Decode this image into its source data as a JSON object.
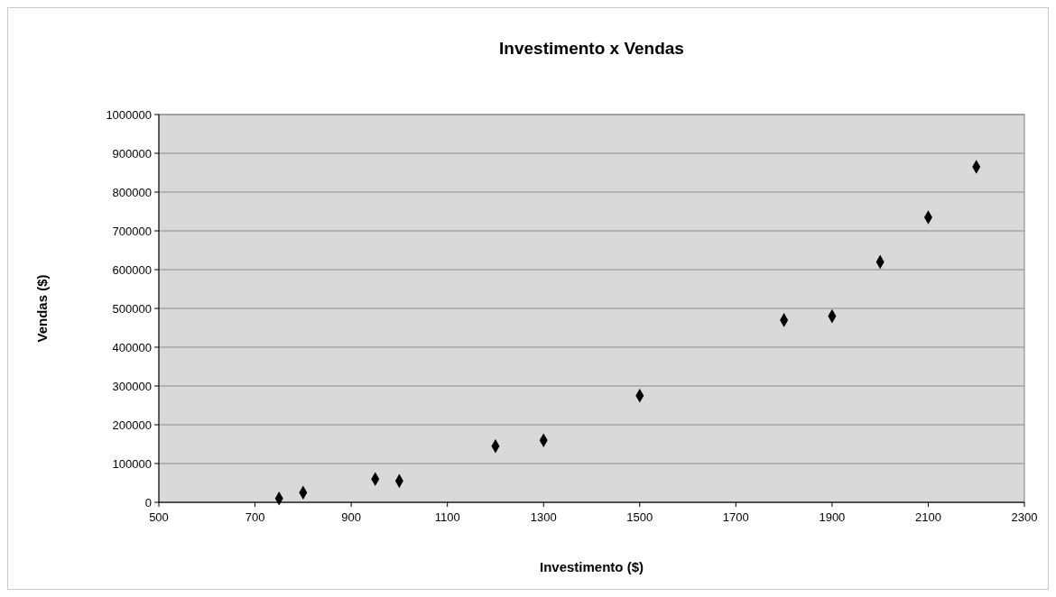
{
  "chart_data": {
    "type": "scatter",
    "title": "Investimento x Vendas",
    "xlabel": "Investimento ($)",
    "ylabel": "Vendas ($)",
    "x": [
      750,
      800,
      950,
      1000,
      1200,
      1300,
      1500,
      1800,
      1900,
      2000,
      2100,
      2200
    ],
    "values": [
      10000,
      25000,
      60000,
      55000,
      145000,
      160000,
      275000,
      470000,
      480000,
      620000,
      735000,
      865000
    ],
    "color": "#000000",
    "marker": "diamond",
    "grid": "y",
    "xlim": [
      500,
      2300
    ],
    "xticks": [
      500,
      700,
      900,
      1100,
      1300,
      1500,
      1700,
      1900,
      2100,
      2300
    ],
    "ylim": [
      0,
      1000000
    ],
    "yticks": [
      0,
      100000,
      200000,
      300000,
      400000,
      500000,
      600000,
      700000,
      800000,
      900000,
      1000000
    ]
  }
}
